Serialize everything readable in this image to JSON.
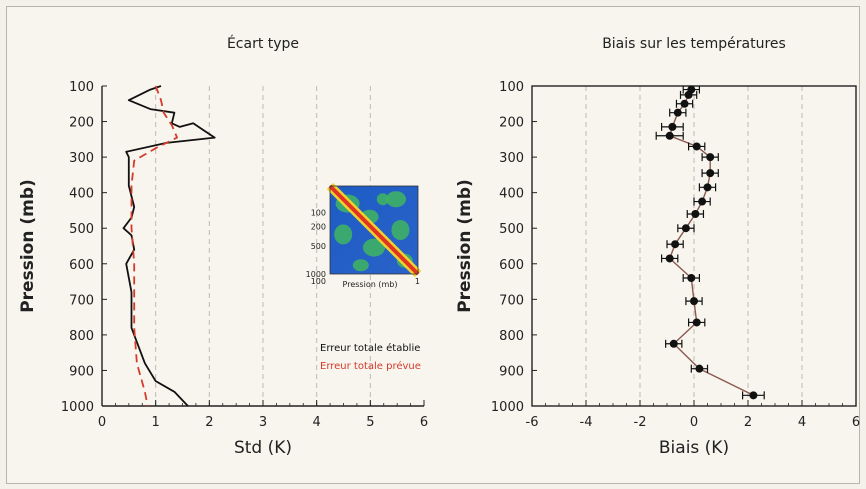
{
  "chart_data": [
    {
      "type": "line",
      "title": "Écart type",
      "xlabel": "Std (K)",
      "ylabel": "Pression (mb)",
      "xlim": [
        0,
        6
      ],
      "ylim": [
        100,
        1000
      ],
      "y_inverted": true,
      "x_ticks": [
        "0",
        "1",
        "2",
        "3",
        "4",
        "5",
        "6"
      ],
      "y_ticks": [
        "100",
        "200",
        "300",
        "400",
        "500",
        "600",
        "700",
        "800",
        "900",
        "1000"
      ],
      "grid": "vertical dashed",
      "series": [
        {
          "name": "Erreur totale établie",
          "color": "#111111",
          "style": "solid",
          "points": [
            [
              1.1,
              100
            ],
            [
              0.9,
              110
            ],
            [
              0.5,
              140
            ],
            [
              0.9,
              165
            ],
            [
              1.35,
              175
            ],
            [
              1.3,
              205
            ],
            [
              1.45,
              215
            ],
            [
              1.7,
              205
            ],
            [
              2.1,
              245
            ],
            [
              1.2,
              260
            ],
            [
              0.45,
              285
            ],
            [
              0.5,
              300
            ],
            [
              0.5,
              380
            ],
            [
              0.6,
              440
            ],
            [
              0.55,
              470
            ],
            [
              0.4,
              500
            ],
            [
              0.55,
              520
            ],
            [
              0.6,
              560
            ],
            [
              0.45,
              600
            ],
            [
              0.55,
              680
            ],
            [
              0.55,
              780
            ],
            [
              0.8,
              880
            ],
            [
              1.0,
              930
            ],
            [
              1.35,
              960
            ],
            [
              1.6,
              1000
            ]
          ]
        },
        {
          "name": "Erreur totale prévue",
          "color": "#d63a2a",
          "style": "dashed",
          "points": [
            [
              1.0,
              100
            ],
            [
              1.1,
              140
            ],
            [
              1.15,
              175
            ],
            [
              1.3,
              210
            ],
            [
              1.4,
              245
            ],
            [
              1.0,
              275
            ],
            [
              0.6,
              310
            ],
            [
              0.55,
              380
            ],
            [
              0.55,
              500
            ],
            [
              0.6,
              600
            ],
            [
              0.6,
              700
            ],
            [
              0.6,
              780
            ],
            [
              0.65,
              880
            ],
            [
              0.8,
              960
            ],
            [
              0.85,
              1000
            ]
          ]
        }
      ],
      "inset": {
        "label": "Pression (mb)",
        "x_left": "100",
        "x_right": "1",
        "y_ticks": [
          "100",
          "200",
          "500",
          "1000"
        ]
      },
      "legend_placement": "lower-right"
    },
    {
      "type": "line",
      "title": "Biais sur les températures",
      "xlabel": "Biais (K)",
      "ylabel": "Pression (mb)",
      "xlim": [
        -6,
        6
      ],
      "ylim": [
        100,
        1000
      ],
      "y_inverted": true,
      "x_ticks": [
        "-6",
        "-4",
        "-2",
        "0",
        "2",
        "4",
        "6"
      ],
      "y_ticks": [
        "100",
        "200",
        "300",
        "400",
        "500",
        "600",
        "700",
        "800",
        "900",
        "1000"
      ],
      "grid": "vertical dashed",
      "series": [
        {
          "name": "",
          "color": "#111111",
          "line_color": "#8a5a50",
          "points": [
            [
              -0.1,
              110
            ],
            [
              -0.2,
              125
            ],
            [
              -0.35,
              150
            ],
            [
              -0.6,
              175
            ],
            [
              -0.8,
              215
            ],
            [
              -0.9,
              240
            ],
            [
              0.1,
              270
            ],
            [
              0.6,
              300
            ],
            [
              0.6,
              345
            ],
            [
              0.5,
              385
            ],
            [
              0.3,
              425
            ],
            [
              0.05,
              460
            ],
            [
              -0.3,
              500
            ],
            [
              -0.7,
              545
            ],
            [
              -0.9,
              585
            ],
            [
              -0.1,
              640
            ],
            [
              0.0,
              705
            ],
            [
              0.1,
              765
            ],
            [
              -0.75,
              825
            ],
            [
              0.2,
              895
            ],
            [
              2.2,
              970
            ]
          ],
          "errors": [
            0.3,
            0.3,
            0.3,
            0.3,
            0.4,
            0.5,
            0.3,
            0.3,
            0.3,
            0.3,
            0.3,
            0.3,
            0.3,
            0.3,
            0.3,
            0.3,
            0.3,
            0.3,
            0.3,
            0.3,
            0.4
          ]
        }
      ]
    }
  ]
}
